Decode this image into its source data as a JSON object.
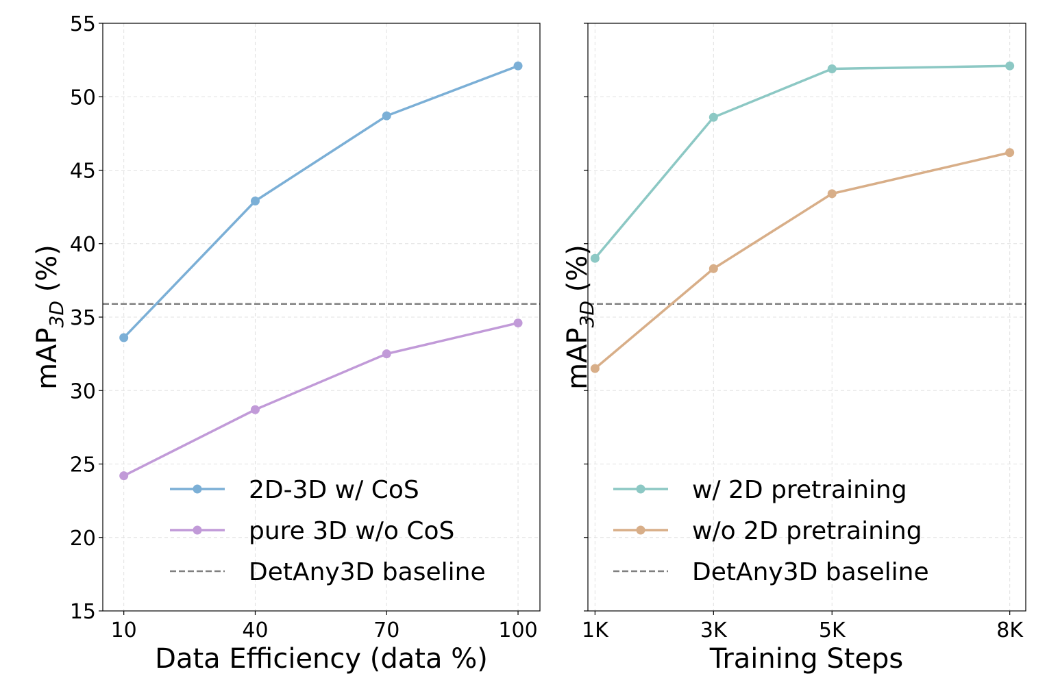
{
  "chart_data": [
    {
      "type": "line",
      "xlabel": "Data Efficiency (data %)",
      "ylabel": "mAP",
      "ylabel_sub": "3D",
      "ylabel_suffix": " (%)",
      "x": [
        10,
        40,
        70,
        100
      ],
      "x_tick_labels": [
        "10",
        "40",
        "70",
        "100"
      ],
      "xlim": [
        5.2,
        105
      ],
      "ylim": [
        15,
        55
      ],
      "y_ticks": [
        15,
        20,
        25,
        30,
        35,
        40,
        45,
        50,
        55
      ],
      "y_tick_labels": [
        "15",
        "20",
        "25",
        "30",
        "35",
        "40",
        "45",
        "50",
        "55"
      ],
      "grid": true,
      "legend_placement": "lower-center",
      "series": [
        {
          "name": "2D-3D w/ CoS",
          "values": [
            33.6,
            42.9,
            48.7,
            52.1
          ],
          "color": "#7bafd6"
        },
        {
          "name": "pure 3D w/o CoS",
          "values": [
            24.2,
            28.7,
            32.5,
            34.6
          ],
          "color": "#c19ad8"
        }
      ],
      "baseline": {
        "name": "DetAny3D baseline",
        "value": 35.9,
        "color": "#808080"
      }
    },
    {
      "type": "line",
      "xlabel": "Training Steps",
      "ylabel": "mAP",
      "ylabel_sub": "3D",
      "ylabel_suffix": " (%)",
      "x": [
        1,
        3,
        5,
        8
      ],
      "x_tick_labels": [
        "1K",
        "3K",
        "5K",
        "8K"
      ],
      "xlim": [
        0.88,
        8.27
      ],
      "ylim": [
        15,
        55
      ],
      "y_ticks": [
        15,
        20,
        25,
        30,
        35,
        40,
        45,
        50,
        55
      ],
      "y_tick_labels": [],
      "grid": true,
      "legend_placement": "lower-center",
      "series": [
        {
          "name": "w/ 2D pretraining",
          "values": [
            39.0,
            48.6,
            51.9,
            52.1
          ],
          "color": "#8cc8c4"
        },
        {
          "name": "w/o 2D pretraining",
          "values": [
            31.5,
            38.3,
            43.4,
            46.2
          ],
          "color": "#d8ae88"
        }
      ],
      "baseline": {
        "name": "DetAny3D baseline",
        "value": 35.9,
        "color": "#808080"
      }
    }
  ]
}
